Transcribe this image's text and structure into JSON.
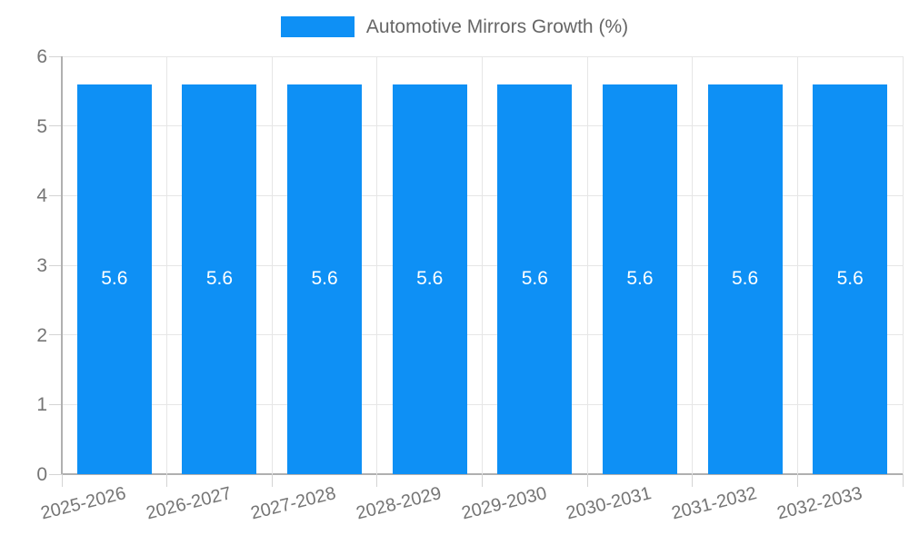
{
  "chart_data": {
    "type": "bar",
    "title": "Automotive Mirrors Growth (%)",
    "legend": {
      "position": "top",
      "label": "Automotive Mirrors Growth (%)"
    },
    "categories": [
      "2025-2026",
      "2026-2027",
      "2027-2028",
      "2028-2029",
      "2029-2030",
      "2030-2031",
      "2031-2032",
      "2032-2033"
    ],
    "values": [
      5.6,
      5.6,
      5.6,
      5.6,
      5.6,
      5.6,
      5.6,
      5.6
    ],
    "bar_labels": [
      "5.6",
      "5.6",
      "5.6",
      "5.6",
      "5.6",
      "5.6",
      "5.6",
      "5.6"
    ],
    "xlabel": "",
    "ylabel": "",
    "ylim": [
      0,
      6
    ],
    "yticks": [
      "0",
      "1",
      "2",
      "3",
      "4",
      "5",
      "6"
    ],
    "grid": true,
    "colors": {
      "bar": "#0e90f5",
      "bar_label": "#ffffff",
      "axis_text": "#757575",
      "legend_text": "#666666",
      "gridline": "#e6e6e6",
      "axis_line": "#b0b0b0",
      "tick": "#d4d4d4",
      "background": "#ffffff"
    }
  }
}
